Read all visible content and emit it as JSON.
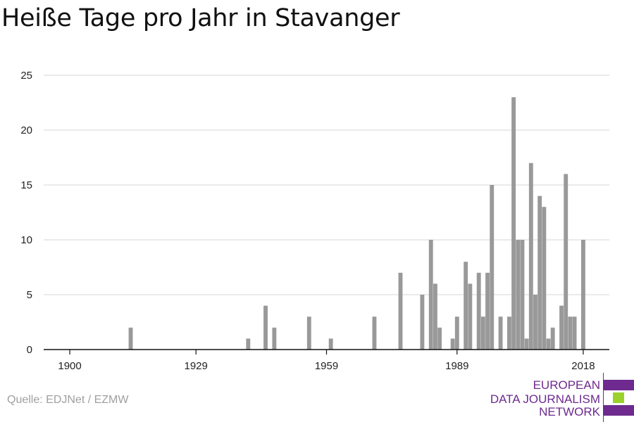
{
  "page": {
    "title": "Heiße Tage pro Jahr in Stavanger",
    "source": "Quelle: EDJNet / EZMW"
  },
  "logo": {
    "lines": [
      "EUROPEAN",
      "DATA JOURNALISM",
      "NETWORK"
    ],
    "colors": {
      "purple": "#6e2a8e",
      "green": "#9bd12a"
    }
  },
  "chart_data": {
    "type": "bar",
    "title": "Heiße Tage pro Jahr in Stavanger",
    "xlabel": "",
    "ylabel": "",
    "xlim": [
      1894,
      2024
    ],
    "ylim": [
      0,
      25
    ],
    "x_ticks": [
      1900,
      1929,
      1959,
      1989,
      2018
    ],
    "y_ticks": [
      0,
      5,
      10,
      15,
      20,
      25
    ],
    "grid": true,
    "bar_color": "#999999",
    "x": [
      1914,
      1941,
      1945,
      1947,
      1955,
      1960,
      1970,
      1976,
      1981,
      1983,
      1984,
      1985,
      1988,
      1989,
      1991,
      1992,
      1994,
      1995,
      1996,
      1997,
      1999,
      2001,
      2002,
      2003,
      2004,
      2005,
      2006,
      2007,
      2008,
      2009,
      2010,
      2011,
      2013,
      2014,
      2015,
      2016,
      2018
    ],
    "values": [
      2,
      1,
      4,
      2,
      3,
      1,
      3,
      7,
      5,
      10,
      6,
      2,
      1,
      3,
      8,
      6,
      7,
      3,
      7,
      15,
      3,
      3,
      23,
      10,
      10,
      1,
      17,
      5,
      14,
      13,
      1,
      2,
      4,
      16,
      3,
      3,
      10
    ]
  }
}
